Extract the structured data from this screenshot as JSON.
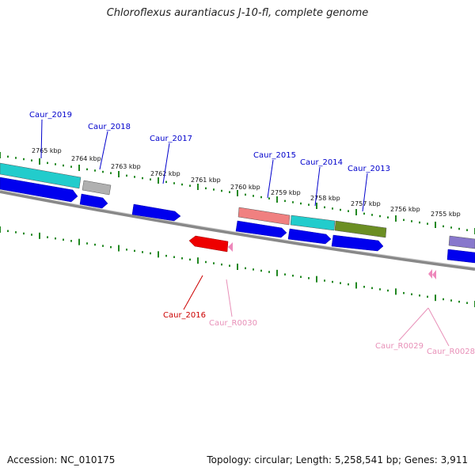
{
  "title": "Chloroflexus aurantiacus J-10-fl, complete genome",
  "footer": {
    "accession": "Accession: NC_010175",
    "topology": "Topology: circular; Length: 5,258,541 bp; Genes: 3,911"
  },
  "ruler_ticks": [
    "2765 kbp",
    "2764 kbp",
    "2763 kbp",
    "2762 kbp",
    "2761 kbp",
    "2760 kbp",
    "2759 kbp",
    "2758 kbp",
    "2757 kbp",
    "2756 kbp",
    "2755 kbp"
  ],
  "gene_labels": [
    {
      "name": "Caur_2019",
      "color": "#0000cc"
    },
    {
      "name": "Caur_2018",
      "color": "#0000cc"
    },
    {
      "name": "Caur_2017",
      "color": "#0000cc"
    },
    {
      "name": "Caur_2015",
      "color": "#0000cc"
    },
    {
      "name": "Caur_2014",
      "color": "#0000cc"
    },
    {
      "name": "Caur_2013",
      "color": "#0000cc"
    },
    {
      "name": "Caur_2016",
      "color": "#cc0000"
    },
    {
      "name": "Caur_R0030",
      "color": "#e890b8"
    },
    {
      "name": "Caur_R0029",
      "color": "#e890b8"
    },
    {
      "name": "Caur_R0028",
      "color": "#e890b8"
    }
  ],
  "colors": {
    "cds": "#0000ee",
    "rrna_teal": "#22cccc",
    "grey": "#b0b0b0",
    "salmon": "#f08080",
    "olive": "#6b8e23",
    "purple": "#8878cc",
    "red": "#ee0000",
    "pink": "#ee88bb",
    "tick": "#228822",
    "backbone": "#888888"
  }
}
